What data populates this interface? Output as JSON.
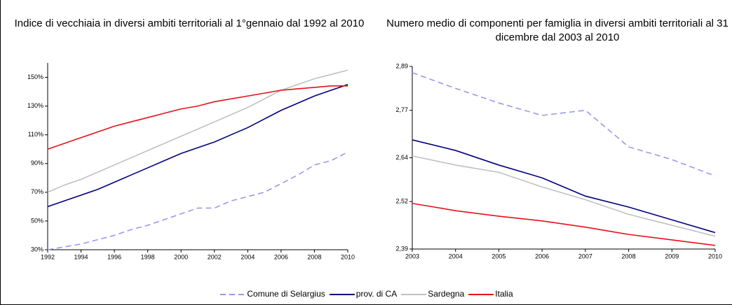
{
  "chart_data": [
    {
      "type": "line",
      "title": "Indice di vecchiaia in diversi ambiti territoriali al 1°gennaio dal 1992 al 2010",
      "x": [
        1992,
        1993,
        1994,
        1995,
        1996,
        1997,
        1998,
        1999,
        2000,
        2001,
        2002,
        2003,
        2004,
        2005,
        2006,
        2007,
        2008,
        2009,
        2010
      ],
      "xlim": [
        1992,
        2010
      ],
      "xticks": [
        1992,
        1994,
        1996,
        1998,
        2000,
        2002,
        2004,
        2006,
        2008,
        2010
      ],
      "ylim": [
        30,
        160
      ],
      "yticks": [
        {
          "value": 30,
          "label": "30%"
        },
        {
          "value": 50,
          "label": "50%"
        },
        {
          "value": 70,
          "label": "70%"
        },
        {
          "value": 90,
          "label": "90%"
        },
        {
          "value": 110,
          "label": "110%"
        },
        {
          "value": 130,
          "label": "130%"
        },
        {
          "value": 150,
          "label": "150%"
        }
      ],
      "series": [
        {
          "name": "Comune di Selargius",
          "color": "#9999ee",
          "style": "dashed",
          "values": [
            30,
            32,
            34,
            37,
            40,
            44,
            47,
            51,
            55,
            59,
            59,
            64,
            67,
            70,
            76,
            82,
            89,
            92,
            98
          ]
        },
        {
          "name": "prov. di CA",
          "color": "#000080",
          "style": "solid",
          "values": [
            60,
            64,
            68,
            72,
            77,
            82,
            87,
            92,
            97,
            101,
            105,
            110,
            115,
            121,
            127,
            132,
            137,
            141,
            145
          ]
        },
        {
          "name": "Sardegna",
          "color": "#c0c0c0",
          "style": "solid",
          "values": [
            70,
            75,
            79,
            84,
            89,
            94,
            99,
            104,
            109,
            114,
            119,
            124,
            129,
            135,
            141,
            145,
            149,
            152,
            155
          ]
        },
        {
          "name": "Italia",
          "color": "#e8101a",
          "style": "solid",
          "values": [
            100,
            104,
            108,
            112,
            116,
            119,
            122,
            125,
            128,
            130,
            133,
            135,
            137,
            139,
            141,
            142,
            143,
            144,
            144
          ]
        }
      ]
    },
    {
      "type": "line",
      "title": "Numero medio di componenti per famiglia in diversi ambiti territoriali al 31 dicembre dal 2003 al 2010",
      "x": [
        2003,
        2004,
        2005,
        2006,
        2007,
        2008,
        2009,
        2010
      ],
      "xlim": [
        2003,
        2010
      ],
      "xticks": [
        2003,
        2004,
        2005,
        2006,
        2007,
        2008,
        2009,
        2010
      ],
      "ylim": [
        2.39,
        2.89
      ],
      "yticks": [
        {
          "value": 2.39,
          "label": "2,39"
        },
        {
          "value": 2.52,
          "label": "2,52"
        },
        {
          "value": 2.64,
          "label": "2,64"
        },
        {
          "value": 2.77,
          "label": "2,77"
        },
        {
          "value": 2.89,
          "label": "2,89"
        }
      ],
      "series": [
        {
          "name": "Comune di Selargius",
          "color": "#9999ee",
          "style": "dashed",
          "values": [
            2.873,
            2.83,
            2.79,
            2.756,
            2.77,
            2.67,
            2.635,
            2.59
          ]
        },
        {
          "name": "prov. di CA",
          "color": "#000080",
          "style": "solid",
          "values": [
            2.689,
            2.66,
            2.62,
            2.585,
            2.535,
            2.505,
            2.47,
            2.435
          ]
        },
        {
          "name": "Sardegna",
          "color": "#c0c0c0",
          "style": "solid",
          "values": [
            2.645,
            2.62,
            2.6,
            2.56,
            2.525,
            2.485,
            2.455,
            2.425
          ]
        },
        {
          "name": "Italia",
          "color": "#e8101a",
          "style": "solid",
          "values": [
            2.515,
            2.495,
            2.48,
            2.467,
            2.45,
            2.43,
            2.415,
            2.4
          ]
        }
      ]
    }
  ]
}
